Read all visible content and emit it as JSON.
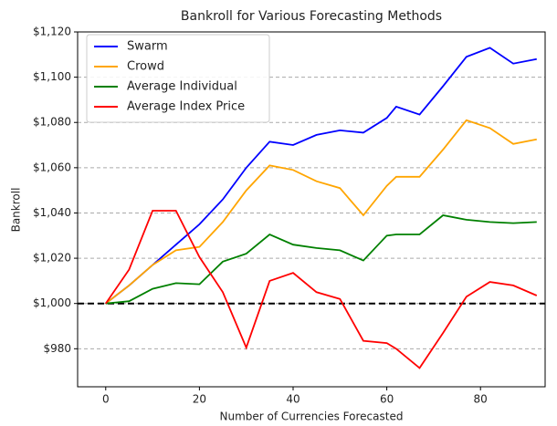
{
  "chart_data": {
    "type": "line",
    "title": "Bankroll for Various Forecasting Methods",
    "x_label": "Number of Currencies Forecasted",
    "y_label": "Bankroll",
    "x": [
      0,
      5,
      10,
      15,
      20,
      25,
      30,
      35,
      40,
      45,
      50,
      55,
      60,
      62,
      67,
      72,
      77,
      82,
      87,
      92
    ],
    "series": [
      {
        "name": "Swarm",
        "color": "#0000ff",
        "values": [
          1000,
          1008,
          1017,
          1026,
          1035,
          1046,
          1060,
          1071.5,
          1070,
          1074.5,
          1076.5,
          1075.5,
          1082,
          1087,
          1083.5,
          1096,
          1109,
          1113,
          1106,
          1108
        ]
      },
      {
        "name": "Crowd",
        "color": "#ffa500",
        "values": [
          1000,
          1008,
          1017,
          1023.5,
          1025,
          1036,
          1050,
          1061,
          1059,
          1054,
          1051,
          1039,
          1052,
          1056,
          1056,
          1068,
          1081,
          1077.5,
          1070.5,
          1072.5
        ]
      },
      {
        "name": "Average Individual",
        "color": "#008000",
        "values": [
          1000,
          1001,
          1006.5,
          1009,
          1008.5,
          1018.5,
          1022,
          1030.5,
          1026,
          1024.5,
          1023.5,
          1019,
          1030,
          1030.5,
          1030.5,
          1039,
          1037,
          1036,
          1035.5,
          1036
        ]
      },
      {
        "name": "Average Index Price",
        "color": "#ff0000",
        "values": [
          1000,
          1015,
          1041,
          1041,
          1020.5,
          1005,
          980.5,
          1010,
          1013.5,
          1005,
          1002,
          983.5,
          982.5,
          980,
          971.5,
          987,
          1003,
          1009.5,
          1008,
          1003.5
        ]
      }
    ],
    "xlim": [
      -6,
      93.8
    ],
    "xticks": [
      0,
      20,
      40,
      60,
      80
    ],
    "ylim": [
      963.2,
      1120
    ],
    "yticks": [
      {
        "value": 980,
        "label": "$980"
      },
      {
        "value": 1000,
        "label": "$1,000"
      },
      {
        "value": 1020,
        "label": "$1,020"
      },
      {
        "value": 1040,
        "label": "$1,040"
      },
      {
        "value": 1060,
        "label": "$1,060"
      },
      {
        "value": 1080,
        "label": "$1,080"
      },
      {
        "value": 1100,
        "label": "$1,100"
      },
      {
        "value": 1120,
        "label": "$1,120"
      }
    ],
    "grid": "y",
    "reference_line": {
      "value": 1000,
      "color": "#000000"
    },
    "legend": "upper left"
  }
}
